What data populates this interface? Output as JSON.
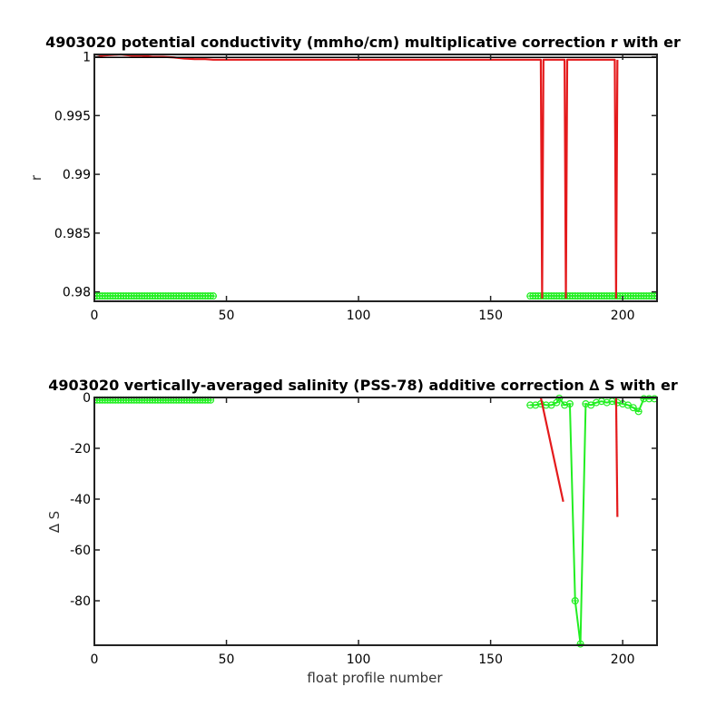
{
  "chart_data": [
    {
      "type": "line",
      "title": "4903020 potential conductivity (mmho/cm) multiplicative correction r with er",
      "xlabel": "",
      "ylabel": "r",
      "xlim": [
        0,
        213
      ],
      "ylim": [
        0.9792,
        1.0002
      ],
      "xticks": [
        0,
        50,
        100,
        150,
        200
      ],
      "yticks": [
        1,
        0.995,
        0.99,
        0.985,
        0.98
      ],
      "ytick_labels": [
        "1",
        "0.995",
        "0.99",
        "0.985",
        "0.98"
      ],
      "colors": {
        "red": "#e41a1c",
        "green": "#22ee22"
      },
      "series": [
        {
          "color": "red",
          "x": [
            1,
            3,
            6,
            10,
            14,
            18,
            22,
            26,
            30,
            34,
            38,
            42,
            45,
            60,
            100,
            150,
            169,
            169.5,
            170,
            178,
            178.5,
            179,
            197,
            197.5,
            198
          ],
          "y": [
            0.99997,
            1.0001,
            1.00015,
            1.0002,
            1.0001,
            1.0001,
            1.0,
            1.0,
            0.99995,
            0.99985,
            0.9998,
            0.9998,
            0.99975,
            0.99975,
            0.99975,
            0.99975,
            0.99975,
            0.9795,
            0.99975,
            0.99975,
            0.9795,
            0.99975,
            0.99975,
            0.9795,
            0.99975
          ]
        },
        {
          "color": "black",
          "x": [
            0,
            213
          ],
          "y": [
            0.99995,
            0.99995
          ]
        }
      ],
      "green_segments": [
        {
          "x": [
            0,
            45
          ],
          "y": 0.97965
        },
        {
          "x": [
            165,
            213
          ],
          "y": 0.97965
        }
      ],
      "green_marker_spacing": 1
    },
    {
      "type": "line",
      "title": "4903020 vertically-averaged salinity (PSS-78) additive correction ∆ S with er",
      "xlabel": "float profile number",
      "ylabel": "∆ S",
      "xlim": [
        0,
        213
      ],
      "ylim": [
        -97.5,
        0
      ],
      "xticks": [
        0,
        50,
        100,
        150,
        200
      ],
      "yticks": [
        0,
        -20,
        -40,
        -60,
        -80
      ],
      "ytick_labels": [
        "0",
        "-20",
        "-40",
        "-60",
        "-80"
      ],
      "colors": {
        "red": "#e41a1c",
        "green": "#22ee22"
      },
      "red_lines": [
        {
          "x": [
            169,
            177.5
          ],
          "y": [
            0,
            -41
          ]
        },
        {
          "x": [
            197.5,
            198
          ],
          "y": [
            0,
            -47
          ]
        }
      ],
      "black_line": {
        "x": [
          0,
          213
        ],
        "y": [
          0,
          0
        ]
      },
      "green_series": {
        "x": [
          0,
          5,
          10,
          15,
          20,
          25,
          30,
          35,
          40,
          44,
          165,
          167,
          169,
          171,
          173,
          175,
          176,
          178,
          180,
          182,
          184,
          186,
          188,
          190,
          192,
          194,
          196,
          198,
          200,
          202,
          204,
          206,
          208,
          210,
          212
        ],
        "y": [
          -1,
          -1,
          -1,
          -1,
          -1,
          -1,
          -1,
          -1,
          -1,
          -1,
          -3,
          -3,
          -2.5,
          -3,
          -3,
          -2,
          -0.3,
          -3,
          -2.5,
          -80,
          -97,
          -2.5,
          -3,
          -2,
          -1.5,
          -2,
          -1.5,
          -2,
          -2.5,
          -3,
          -4,
          -5.5,
          -0.5,
          -0.5,
          -0.5
        ]
      }
    }
  ]
}
